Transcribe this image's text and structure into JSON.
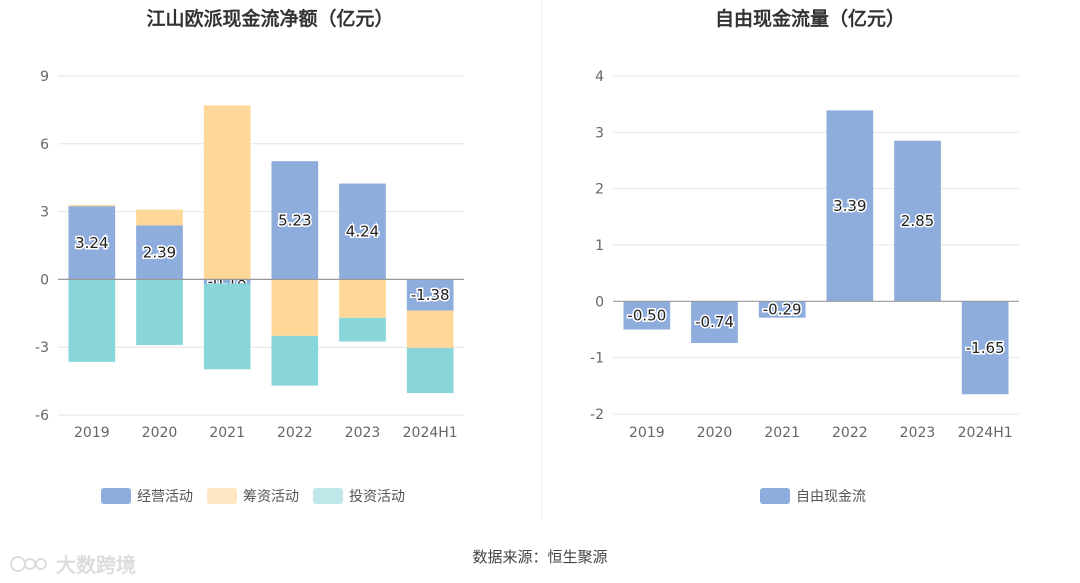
{
  "charts": {
    "left_title": "江山欧派现金流净额（亿元）",
    "right_title": "自由现金流量（亿元）"
  },
  "colors": {
    "operating": "#8eacdc",
    "financing": "#ffd899",
    "investing": "#88d6d9",
    "free_cash_flow": "#8eacdc",
    "investing_legend": "#bfe8ea",
    "financing_legend": "#ffe6c2"
  },
  "footer": {
    "source": "数据来源：恒生聚源",
    "watermark": "大数跨境"
  },
  "chart_data": [
    {
      "type": "bar",
      "stacked": true,
      "title": "江山欧派现金流净额（亿元）",
      "categories": [
        "2019",
        "2020",
        "2021",
        "2022",
        "2023",
        "2024H1"
      ],
      "ylim": [
        -6,
        9
      ],
      "yticks": [
        -6,
        -3,
        0,
        3,
        6,
        9
      ],
      "grid": true,
      "legend_position": "bottom",
      "series": [
        {
          "name": "经营活动",
          "values": [
            3.24,
            2.39,
            -0.18,
            5.23,
            4.24,
            -1.38
          ],
          "labels": [
            "3.24",
            "2.39",
            "-0.18",
            "5.23",
            "4.24",
            "-1.38"
          ]
        },
        {
          "name": "筹资活动",
          "values": [
            0.05,
            0.7,
            7.7,
            -2.5,
            -1.7,
            -1.65
          ]
        },
        {
          "name": "投资活动",
          "values": [
            -3.65,
            -2.9,
            -3.8,
            -2.2,
            -1.05,
            -2.0
          ]
        }
      ]
    },
    {
      "type": "bar",
      "title": "自由现金流量（亿元）",
      "categories": [
        "2019",
        "2020",
        "2021",
        "2022",
        "2023",
        "2024H1"
      ],
      "ylim": [
        -2,
        4
      ],
      "yticks": [
        -2,
        -1,
        0,
        1,
        2,
        3,
        4
      ],
      "grid": true,
      "legend_position": "bottom",
      "series": [
        {
          "name": "自由现金流",
          "values": [
            -0.5,
            -0.74,
            -0.29,
            3.39,
            2.85,
            -1.65
          ],
          "labels": [
            "-0.50",
            "-0.74",
            "-0.29",
            "3.39",
            "2.85",
            "-1.65"
          ]
        }
      ]
    }
  ]
}
